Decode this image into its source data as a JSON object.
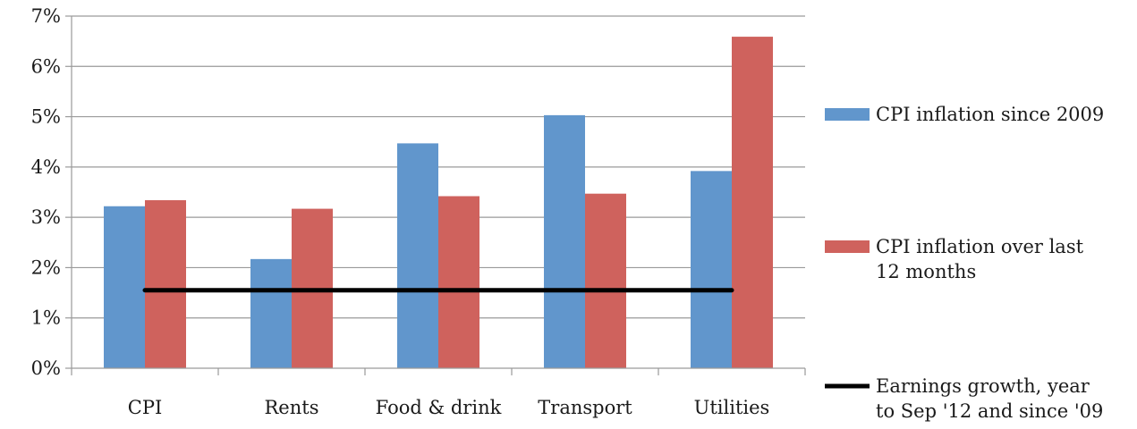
{
  "chart_data": {
    "type": "bar",
    "categories": [
      "CPI",
      "Rents",
      "Food & drink",
      "Transport",
      "Utilities"
    ],
    "series": [
      {
        "name": "CPI inflation since 2009",
        "kind": "bar",
        "color": "#6196cc",
        "values": [
          3.22,
          2.17,
          4.47,
          5.03,
          3.92
        ]
      },
      {
        "name": "CPI inflation over last 12 months",
        "kind": "bar",
        "color": "#cf625d",
        "values": [
          3.34,
          3.17,
          3.42,
          3.47,
          6.59
        ]
      },
      {
        "name": "Earnings growth, year to Sep '12 and since '09",
        "kind": "line",
        "color": "#000000",
        "values": [
          1.55,
          1.55,
          1.55,
          1.55,
          1.55
        ]
      }
    ],
    "yticks": [
      "0%",
      "1%",
      "2%",
      "3%",
      "4%",
      "5%",
      "6%",
      "7%"
    ],
    "ylim": [
      0,
      7
    ],
    "grid": true,
    "legend_position": "right"
  }
}
